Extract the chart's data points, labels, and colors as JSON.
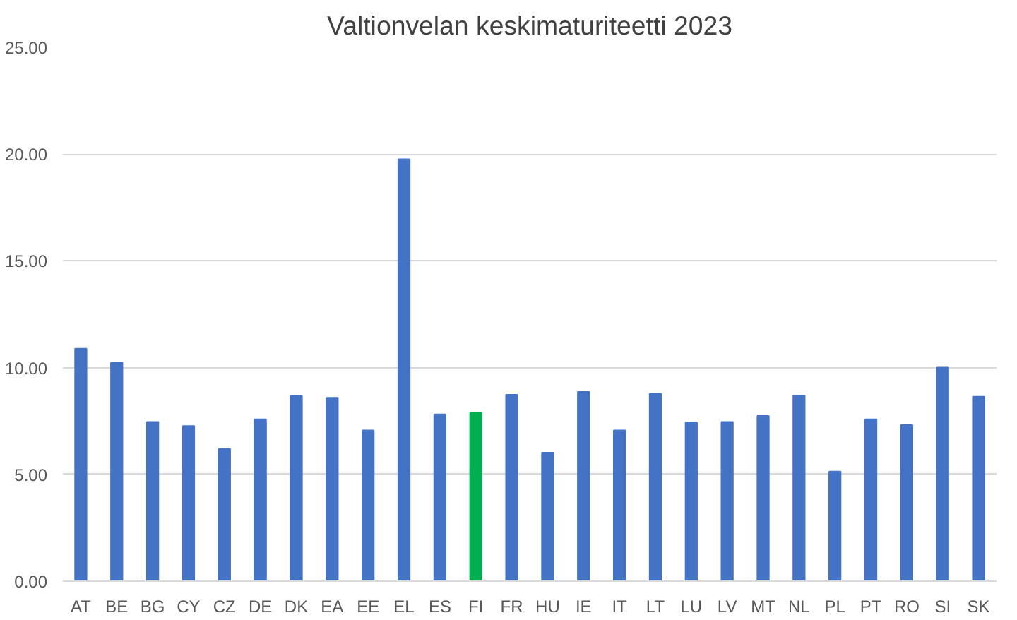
{
  "chart_data": {
    "type": "bar",
    "title": "Valtionvelan keskimaturiteetti 2023",
    "categories": [
      "AT",
      "BE",
      "BG",
      "CY",
      "CZ",
      "DE",
      "DK",
      "EA",
      "EE",
      "EL",
      "ES",
      "FI",
      "FR",
      "HU",
      "IE",
      "IT",
      "LT",
      "LU",
      "LV",
      "MT",
      "NL",
      "PL",
      "PT",
      "RO",
      "SI",
      "SK"
    ],
    "values": [
      10.89,
      10.24,
      7.46,
      7.27,
      6.19,
      7.58,
      8.66,
      8.59,
      7.06,
      19.76,
      7.81,
      7.88,
      8.73,
      6.02,
      8.87,
      7.06,
      8.78,
      7.44,
      7.46,
      7.74,
      8.68,
      5.13,
      7.58,
      7.32,
      10.0,
      8.64
    ],
    "colors": [
      "#4472c4",
      "#4472c4",
      "#4472c4",
      "#4472c4",
      "#4472c4",
      "#4472c4",
      "#4472c4",
      "#4472c4",
      "#4472c4",
      "#4472c4",
      "#4472c4",
      "#00b050",
      "#4472c4",
      "#4472c4",
      "#4472c4",
      "#4472c4",
      "#4472c4",
      "#4472c4",
      "#4472c4",
      "#4472c4",
      "#4472c4",
      "#4472c4",
      "#4472c4",
      "#4472c4",
      "#4472c4",
      "#4472c4"
    ],
    "ylim": [
      0,
      25
    ],
    "yticks": [
      {
        "value": 0,
        "label": "0.00"
      },
      {
        "value": 5,
        "label": "5.00"
      },
      {
        "value": 10,
        "label": "10.00"
      },
      {
        "value": 15,
        "label": "15.00"
      },
      {
        "value": 20,
        "label": "20.00"
      },
      {
        "value": 25,
        "label": "25.00"
      }
    ],
    "grid": "y"
  }
}
